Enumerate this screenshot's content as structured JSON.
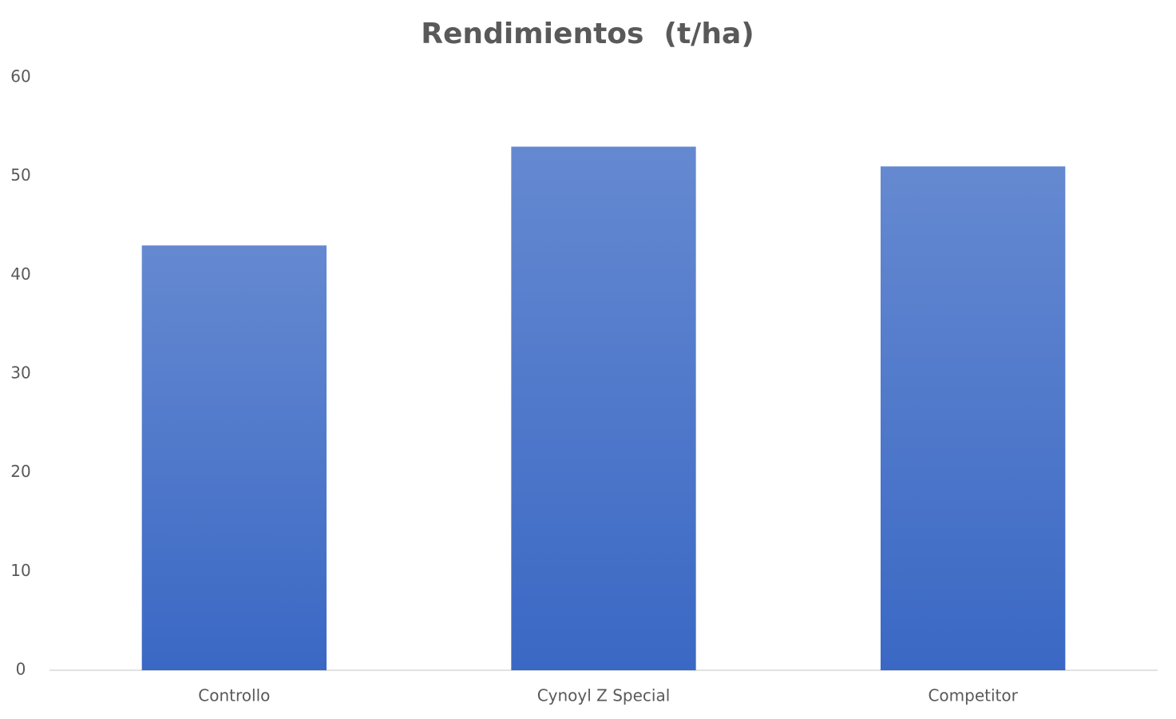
{
  "chart_data": {
    "type": "bar",
    "title": "Rendimientos  (t/ha)",
    "categories": [
      "Controllo",
      "Cynoyl Z Special",
      "Competitor"
    ],
    "values": [
      43,
      53,
      51
    ],
    "color": "#3a68c4",
    "ylim": [
      0,
      60
    ],
    "yticks": [
      0,
      10,
      20,
      30,
      40,
      50,
      60
    ],
    "grid": false
  }
}
